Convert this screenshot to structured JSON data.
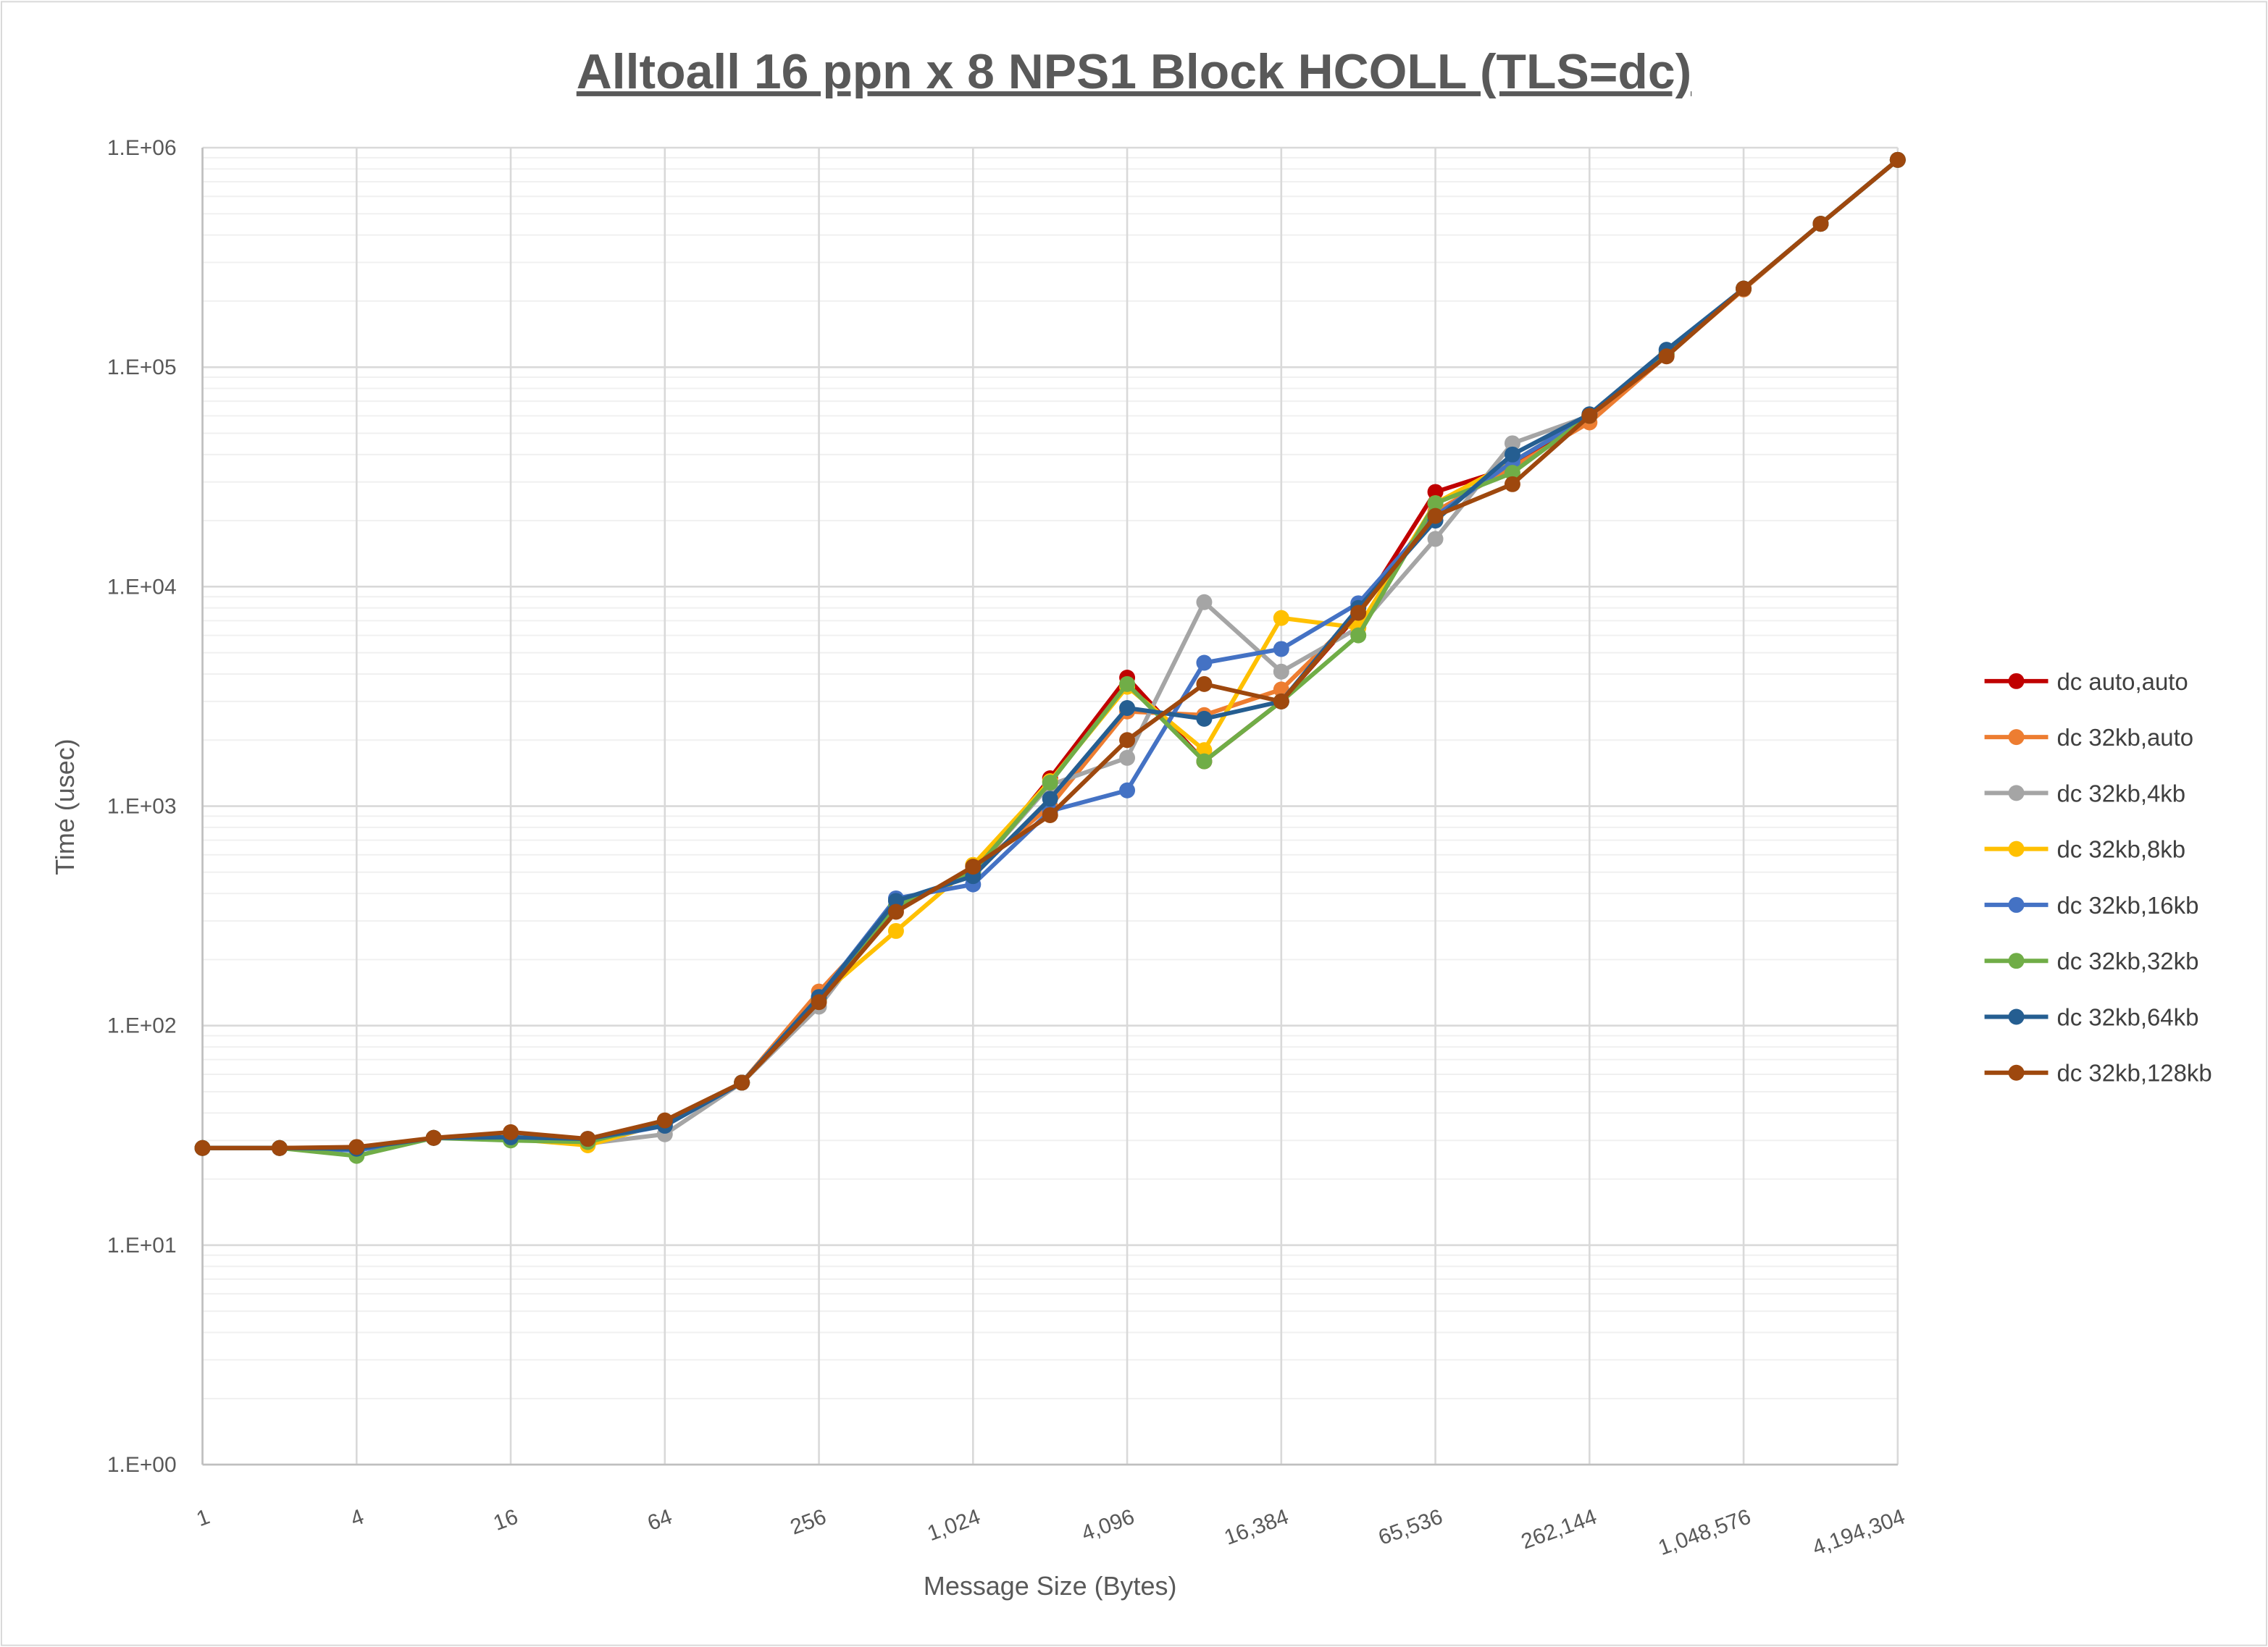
{
  "chart_data": {
    "type": "line",
    "title": "Alltoall 16 ppn x 8 NPS1 Block HCOLL (TLS=dc)",
    "xlabel": "Message Size (Bytes)",
    "ylabel": "Time (usec)",
    "x_scale": "log2",
    "y_scale": "log10",
    "xlim": [
      1,
      4194304
    ],
    "ylim": [
      1,
      1000000
    ],
    "grid": true,
    "legend": "right",
    "x": [
      1,
      2,
      4,
      8,
      16,
      32,
      64,
      128,
      256,
      512,
      1024,
      2048,
      4096,
      8192,
      16384,
      32768,
      65536,
      131072,
      262144,
      524288,
      1048576,
      2097152,
      4194304
    ],
    "x_tick_labels": [
      "1",
      "4",
      "16",
      "64",
      "256",
      "1,024",
      "4,096",
      "16,384",
      "65,536",
      "262,144",
      "1,048,576",
      "4,194,304"
    ],
    "x_tick_values": [
      1,
      4,
      16,
      64,
      256,
      1024,
      4096,
      16384,
      65536,
      262144,
      1048576,
      4194304
    ],
    "y_tick_labels": [
      "1.E+00",
      "1.E+01",
      "1.E+02",
      "1.E+03",
      "1.E+04",
      "1.E+05",
      "1.E+06"
    ],
    "y_tick_values": [
      1,
      10,
      100,
      1000,
      10000,
      100000,
      1000000
    ],
    "series": [
      {
        "name": "dc auto,auto",
        "color": "#C00000",
        "values": [
          27.7,
          27.7,
          27.5,
          30.8,
          31,
          30,
          36,
          55,
          132,
          350,
          500,
          1340,
          3850,
          1600,
          3000,
          7500,
          27000,
          35000,
          60000,
          115000,
          228000,
          450000,
          880000
        ]
      },
      {
        "name": "dc 32kb,auto",
        "color": "#ED7D31",
        "values": [
          27.7,
          27.7,
          27.5,
          30.8,
          31,
          30,
          36,
          55,
          143,
          340,
          510,
          1000,
          2700,
          2600,
          3400,
          7500,
          22000,
          35000,
          56000,
          113000,
          226000,
          450000,
          880000
        ]
      },
      {
        "name": "dc 32kb,4kb",
        "color": "#A5A5A5",
        "values": [
          27.7,
          27.7,
          27.5,
          30.8,
          31,
          29,
          32,
          55,
          122,
          350,
          500,
          1250,
          1660,
          8500,
          4100,
          6500,
          16500,
          45000,
          60000,
          114000,
          228000,
          450000,
          880000
        ]
      },
      {
        "name": "dc 32kb,8kb",
        "color": "#FFC000",
        "values": [
          27.7,
          27.7,
          27.5,
          30.8,
          30.5,
          28.5,
          36,
          55,
          135,
          270,
          540,
          1300,
          3500,
          1800,
          7200,
          6500,
          24000,
          37000,
          60000,
          115000,
          228000,
          450000,
          880000
        ]
      },
      {
        "name": "dc 32kb,16kb",
        "color": "#4472C4",
        "values": [
          27.7,
          27.7,
          27,
          30.8,
          31,
          30,
          35,
          55,
          135,
          380,
          440,
          950,
          1180,
          4500,
          5200,
          8400,
          21000,
          37000,
          60000,
          116000,
          228000,
          450000,
          880000
        ]
      },
      {
        "name": "dc 32kb,32kb",
        "color": "#70AD47",
        "values": [
          27.7,
          27.7,
          25.5,
          30.8,
          30,
          29.5,
          36,
          55,
          130,
          350,
          500,
          1280,
          3600,
          1600,
          3000,
          6000,
          24000,
          33000,
          60000,
          115000,
          228000,
          450000,
          880000
        ]
      },
      {
        "name": "dc 32kb,64kb",
        "color": "#255E91",
        "values": [
          27.7,
          27.7,
          27.5,
          30.8,
          31,
          30.5,
          35,
          55,
          135,
          370,
          480,
          1080,
          2800,
          2500,
          3000,
          8000,
          20000,
          40000,
          61000,
          120000,
          228000,
          450000,
          880000
        ]
      },
      {
        "name": "dc 32kb,128kb",
        "color": "#9E480E",
        "values": [
          27.7,
          27.7,
          28,
          30.8,
          32.7,
          30.5,
          37,
          55,
          128,
          330,
          530,
          910,
          2000,
          3600,
          3000,
          7600,
          21000,
          29300,
          60000,
          112000,
          228000,
          450000,
          880000
        ]
      }
    ]
  }
}
